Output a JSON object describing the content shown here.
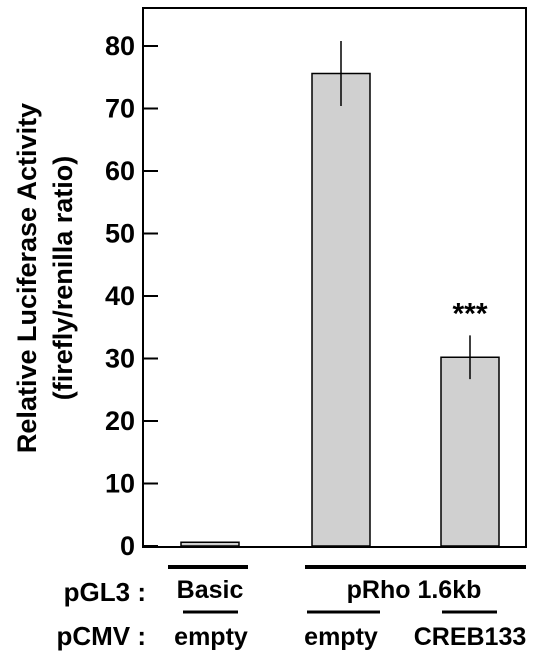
{
  "chart_data": {
    "type": "bar",
    "ylabel_line1": "Relative Luciferase Activity",
    "ylabel_line2": "(firefly/renilla ratio)",
    "ylim": [
      0,
      85
    ],
    "yticks": [
      0,
      10,
      20,
      30,
      40,
      50,
      60,
      70,
      80
    ],
    "ytick_labels": [
      "0",
      "10",
      "20",
      "30",
      "40",
      "50",
      "60",
      "70",
      "80"
    ],
    "grid": false,
    "legend": "none",
    "bars": [
      {
        "value": 0.6,
        "error": 0
      },
      {
        "value": 75.6,
        "error": 5.2
      },
      {
        "value": 30.2,
        "error": 3.5,
        "annotation": "***"
      }
    ],
    "bar_color": "#d0d0d0",
    "row_labels": {
      "pgl3": "pGL3 :",
      "pcmv": "pCMV :"
    },
    "pgl3_groups": [
      "Basic",
      "pRho 1.6kb"
    ],
    "pcmv_labels": [
      "empty",
      "empty",
      "CREB133"
    ]
  }
}
